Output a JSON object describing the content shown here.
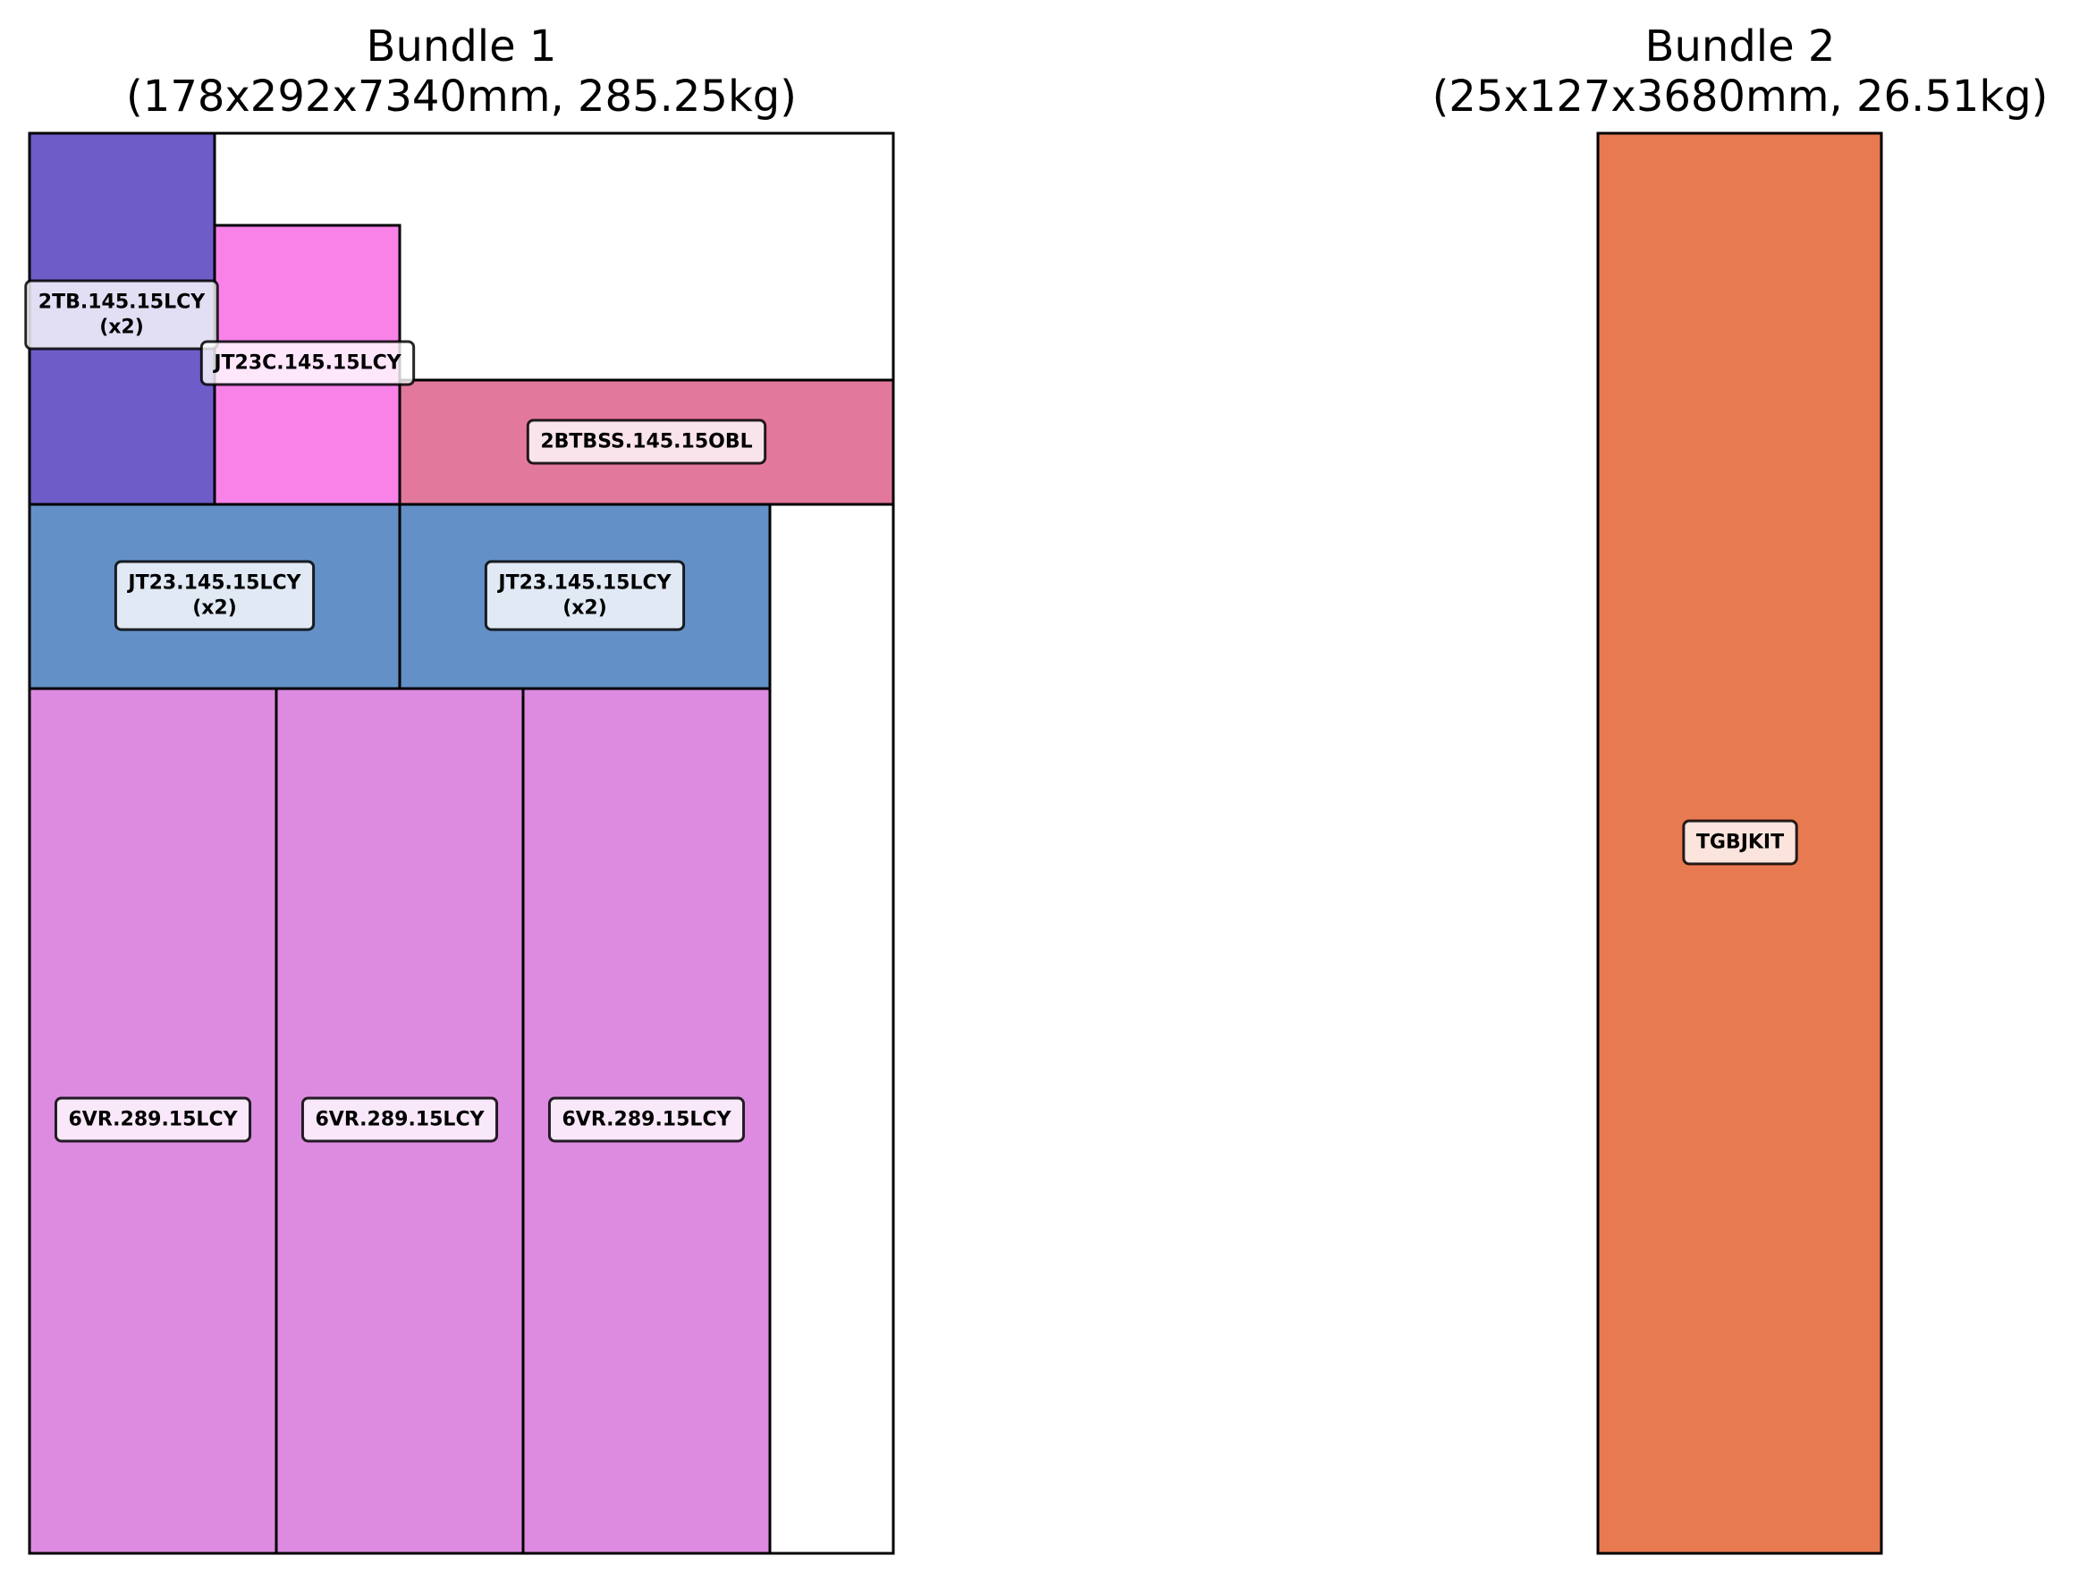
{
  "bundles": [
    {
      "title": "Bundle 1",
      "subtitle": "(178x292x7340mm, 285.25kg)",
      "pieces": [
        {
          "label_lines": [
            "2TB.145.15LCY",
            "(x2)"
          ],
          "color": "#6e5cc8"
        },
        {
          "label_lines": [
            "JT23C.145.15LCY"
          ],
          "color": "#f982e8"
        },
        {
          "label_lines": [
            "2BTBSS.145.15OBL"
          ],
          "color": "#e3789d"
        },
        {
          "label_lines": [
            "JT23.145.15LCY",
            "(x2)"
          ],
          "color": "#6390c6"
        },
        {
          "label_lines": [
            "JT23.145.15LCY",
            "(x2)"
          ],
          "color": "#6390c6"
        },
        {
          "label_lines": [
            "6VR.289.15LCY"
          ],
          "color": "#dc8be0"
        },
        {
          "label_lines": [
            "6VR.289.15LCY"
          ],
          "color": "#dc8be0"
        },
        {
          "label_lines": [
            "6VR.289.15LCY"
          ],
          "color": "#dc8be0"
        }
      ]
    },
    {
      "title": "Bundle 2",
      "subtitle": "(25x127x3680mm, 26.51kg)",
      "pieces": [
        {
          "label_lines": [
            "TGBJKIT"
          ],
          "color": "#e87a52"
        }
      ]
    }
  ]
}
